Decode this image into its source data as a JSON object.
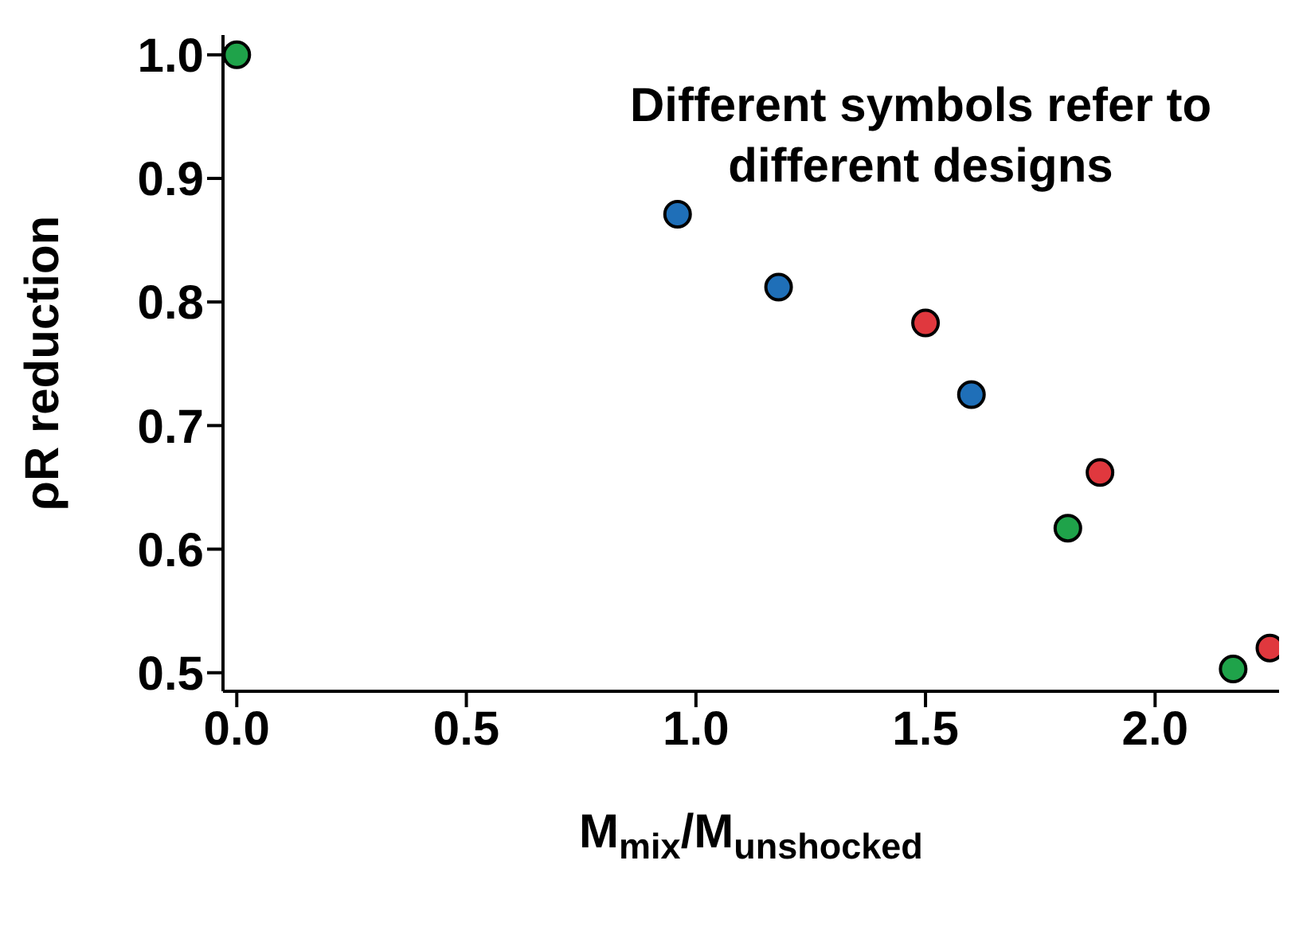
{
  "chart_data": {
    "type": "scatter",
    "xlabel": "M$_{mix}$/M$_{unshocked}$",
    "ylabel": "ρR reduction",
    "annotations": [
      "Different symbols refer to different designs"
    ],
    "xlim": [
      -0.03,
      2.27
    ],
    "ylim": [
      0.485,
      1.016
    ],
    "xticks": [
      {
        "value": 0,
        "label": "0.0"
      },
      {
        "value": 0.5,
        "label": "0.5"
      },
      {
        "value": 1,
        "label": "1.0"
      },
      {
        "value": 1.5,
        "label": "1.5"
      },
      {
        "value": 2,
        "label": "2.0"
      }
    ],
    "yticks": [
      {
        "value": 0.5,
        "label": "0.5"
      },
      {
        "value": 0.6,
        "label": "0.6"
      },
      {
        "value": 0.7,
        "label": "0.7"
      },
      {
        "value": 0.8,
        "label": "0.8"
      },
      {
        "value": 0.9,
        "label": "0.9"
      },
      {
        "value": 1,
        "label": "1.0"
      }
    ],
    "marker": "circle",
    "grid": false,
    "legend": false,
    "series": [
      {
        "color": "#1fa34a",
        "x": [
          0.0,
          1.81,
          2.17
        ],
        "values": [
          1.0,
          0.617,
          0.503
        ]
      },
      {
        "color": "#1f6fb8",
        "x": [
          0.96,
          1.18,
          1.6
        ],
        "values": [
          0.871,
          0.812,
          0.725
        ]
      },
      {
        "color": "#e0383e",
        "x": [
          1.5,
          1.88,
          2.25
        ],
        "values": [
          0.783,
          0.662,
          0.52
        ]
      }
    ]
  }
}
